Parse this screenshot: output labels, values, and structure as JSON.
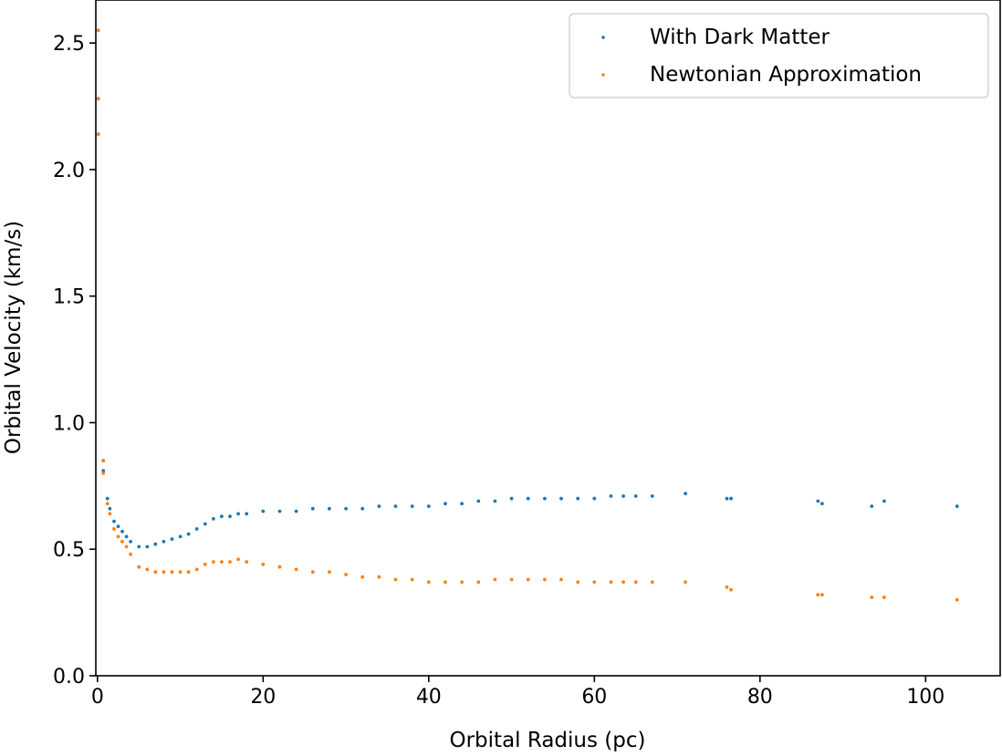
{
  "chart_data": {
    "type": "scatter",
    "title": "",
    "xlabel": "Orbital Radius (pc)",
    "ylabel": "Orbital Velocity (km/s)",
    "xlim": [
      -0.2,
      109
    ],
    "ylim": [
      0.0,
      2.67
    ],
    "xticks": [
      0,
      20,
      40,
      60,
      80,
      100
    ],
    "xtick_labels": [
      "0",
      "20",
      "40",
      "60",
      "80",
      "100"
    ],
    "yticks": [
      0.0,
      0.5,
      1.0,
      1.5,
      2.0,
      2.5
    ],
    "ytick_labels": [
      "0.0",
      "0.5",
      "1.0",
      "1.5",
      "2.0",
      "2.5"
    ],
    "grid": false,
    "legend_position": "top-right",
    "series": [
      {
        "name": "With Dark Matter",
        "color": "#1f77b4",
        "x": [
          0.1,
          0.1,
          0.1,
          0.7,
          0.7,
          1.2,
          1.5,
          2.0,
          2.5,
          3.0,
          3.5,
          4.0,
          5.0,
          6.0,
          7.0,
          8.0,
          9.0,
          10.0,
          11.0,
          12.0,
          13.0,
          14.0,
          15.0,
          16.0,
          17.0,
          18.0,
          20.0,
          22.0,
          24.0,
          26.0,
          28.0,
          30.0,
          32.0,
          34.0,
          36.0,
          38.0,
          40.0,
          42.0,
          44.0,
          46.0,
          48.0,
          50.0,
          52.0,
          54.0,
          56.0,
          58.0,
          60.0,
          62.0,
          63.5,
          65.0,
          67.0,
          71.0,
          76.0,
          76.5,
          87.0,
          87.5,
          93.5,
          95.0,
          103.8
        ],
        "y": [
          2.55,
          2.28,
          2.14,
          0.85,
          0.81,
          0.7,
          0.66,
          0.61,
          0.59,
          0.57,
          0.55,
          0.53,
          0.51,
          0.51,
          0.52,
          0.53,
          0.54,
          0.55,
          0.56,
          0.58,
          0.6,
          0.62,
          0.63,
          0.63,
          0.64,
          0.64,
          0.65,
          0.65,
          0.65,
          0.66,
          0.66,
          0.66,
          0.66,
          0.67,
          0.67,
          0.67,
          0.67,
          0.68,
          0.68,
          0.69,
          0.69,
          0.7,
          0.7,
          0.7,
          0.7,
          0.7,
          0.7,
          0.71,
          0.71,
          0.71,
          0.71,
          0.72,
          0.7,
          0.7,
          0.69,
          0.68,
          0.67,
          0.69,
          0.67
        ]
      },
      {
        "name": "Newtonian Approximation",
        "color": "#ff7f0e",
        "x": [
          0.1,
          0.1,
          0.1,
          0.7,
          0.7,
          1.2,
          1.5,
          2.0,
          2.5,
          3.0,
          3.5,
          4.0,
          5.0,
          6.0,
          7.0,
          8.0,
          9.0,
          10.0,
          11.0,
          12.0,
          13.0,
          14.0,
          15.0,
          16.0,
          17.0,
          18.0,
          20.0,
          22.0,
          24.0,
          26.0,
          28.0,
          30.0,
          32.0,
          34.0,
          36.0,
          38.0,
          40.0,
          42.0,
          44.0,
          46.0,
          48.0,
          50.0,
          52.0,
          54.0,
          56.0,
          58.0,
          60.0,
          62.0,
          63.5,
          65.0,
          67.0,
          71.0,
          76.0,
          76.5,
          87.0,
          87.5,
          93.5,
          95.0,
          103.8
        ],
        "y": [
          2.55,
          2.28,
          2.14,
          0.85,
          0.8,
          0.68,
          0.64,
          0.58,
          0.55,
          0.53,
          0.51,
          0.48,
          0.43,
          0.42,
          0.41,
          0.41,
          0.41,
          0.41,
          0.41,
          0.42,
          0.44,
          0.45,
          0.45,
          0.45,
          0.46,
          0.45,
          0.44,
          0.43,
          0.42,
          0.41,
          0.41,
          0.4,
          0.39,
          0.39,
          0.38,
          0.38,
          0.37,
          0.37,
          0.37,
          0.37,
          0.38,
          0.38,
          0.38,
          0.38,
          0.38,
          0.37,
          0.37,
          0.37,
          0.37,
          0.37,
          0.37,
          0.37,
          0.35,
          0.34,
          0.32,
          0.32,
          0.31,
          0.31,
          0.3
        ]
      }
    ]
  }
}
